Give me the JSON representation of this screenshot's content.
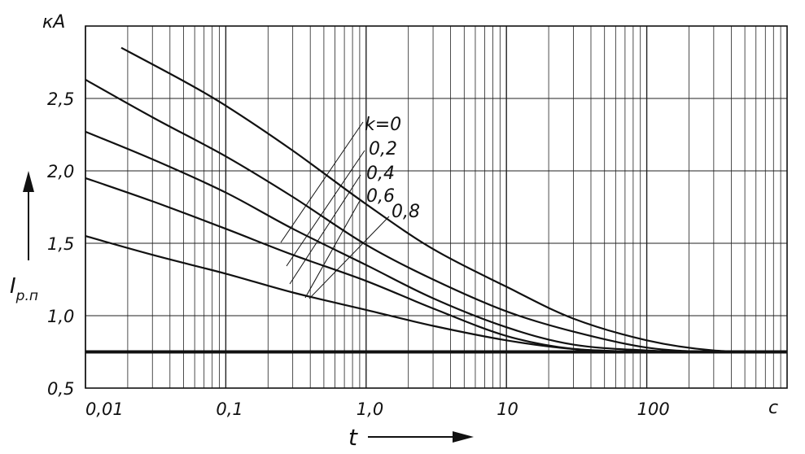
{
  "chart_data": {
    "type": "line",
    "xscale": "log",
    "xlim": [
      0.01,
      1000
    ],
    "ylim": [
      0.5,
      3.0
    ],
    "grid": true,
    "y_unit": "кА",
    "x_unit": "с",
    "ylabel_main": "I",
    "ylabel_sub": "р.п",
    "xlabel": "t",
    "x_ticks": [
      {
        "value": 0.01,
        "label": "0,01"
      },
      {
        "value": 0.1,
        "label": "0,1"
      },
      {
        "value": 1,
        "label": "1,0"
      },
      {
        "value": 10,
        "label": "10"
      },
      {
        "value": 100,
        "label": "100"
      }
    ],
    "y_ticks": [
      {
        "value": 0.5,
        "label": "0,5"
      },
      {
        "value": 1.0,
        "label": "1,0"
      },
      {
        "value": 1.5,
        "label": "1,5"
      },
      {
        "value": 2.0,
        "label": "2,0"
      },
      {
        "value": 2.5,
        "label": "2,5"
      }
    ],
    "series": [
      {
        "name": "k=0",
        "x": [
          0.018,
          0.05,
          0.1,
          0.3,
          1,
          3,
          10,
          30,
          100,
          300,
          1000
        ],
        "y": [
          2.85,
          2.62,
          2.45,
          2.14,
          1.77,
          1.46,
          1.2,
          0.98,
          0.83,
          0.76,
          0.75
        ]
      },
      {
        "name": "0,2",
        "x": [
          0.01,
          0.03,
          0.1,
          0.3,
          1,
          3,
          10,
          30,
          100,
          300,
          1000
        ],
        "y": [
          2.63,
          2.37,
          2.1,
          1.82,
          1.49,
          1.25,
          1.03,
          0.89,
          0.78,
          0.75,
          0.75
        ]
      },
      {
        "name": "0,4",
        "x": [
          0.01,
          0.03,
          0.1,
          0.3,
          1,
          3,
          10,
          30,
          100,
          300,
          1000
        ],
        "y": [
          2.27,
          2.08,
          1.85,
          1.6,
          1.35,
          1.12,
          0.92,
          0.8,
          0.76,
          0.75,
          0.75
        ]
      },
      {
        "name": "0,6",
        "x": [
          0.01,
          0.03,
          0.1,
          0.3,
          1,
          3,
          10,
          30,
          100,
          300,
          1000
        ],
        "y": [
          1.95,
          1.79,
          1.6,
          1.42,
          1.24,
          1.05,
          0.86,
          0.77,
          0.75,
          0.75,
          0.75
        ]
      },
      {
        "name": "0,8",
        "x": [
          0.01,
          0.03,
          0.1,
          0.3,
          1,
          3,
          10,
          30,
          100,
          300,
          1000
        ],
        "y": [
          1.55,
          1.42,
          1.29,
          1.16,
          1.04,
          0.93,
          0.83,
          0.77,
          0.75,
          0.75,
          0.75
        ]
      }
    ],
    "baseline": {
      "y": 0.75
    }
  }
}
